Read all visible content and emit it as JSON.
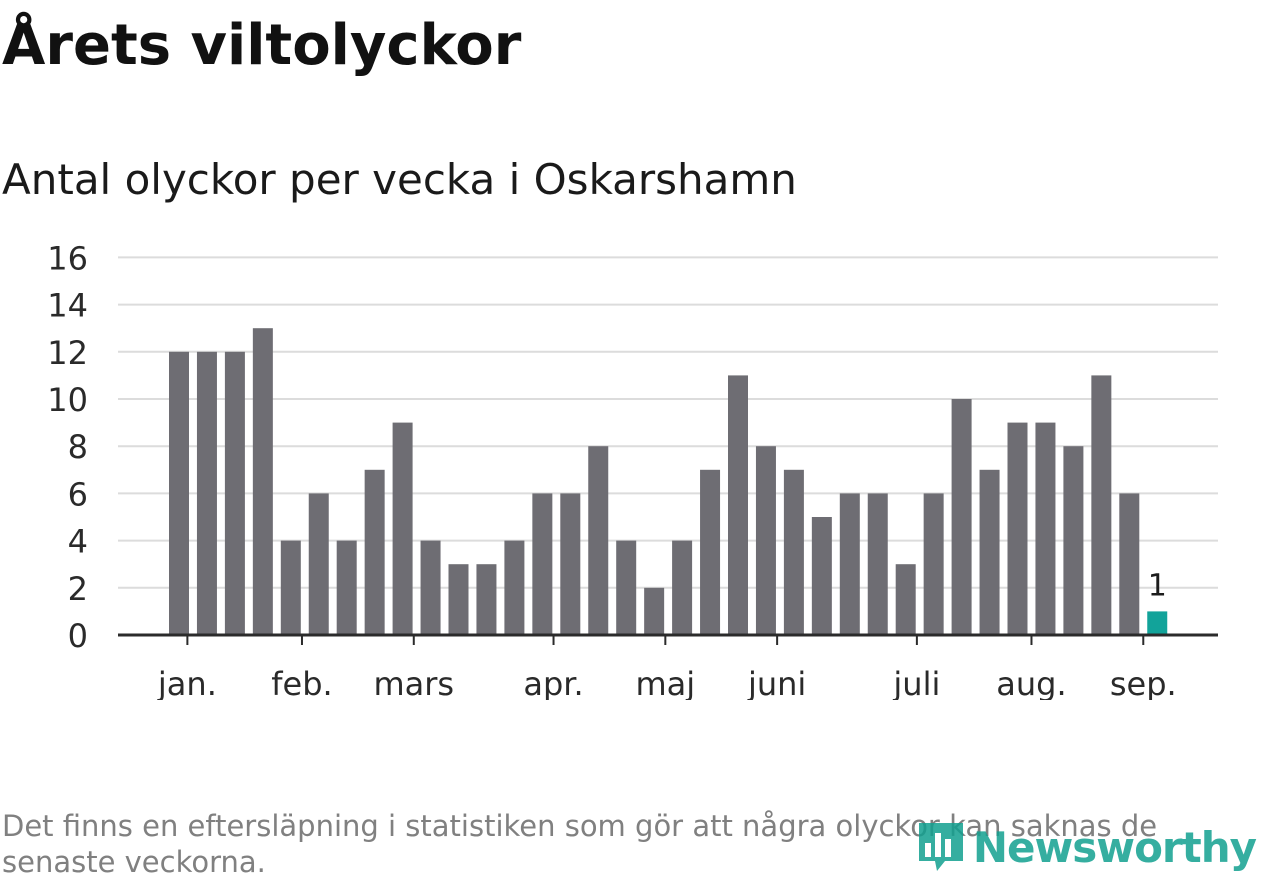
{
  "title": "Årets viltolyckor",
  "subtitle": "Antal olyckor per vecka i Oskarshamn",
  "footnote": "Det finns en eftersläpning i statistiken som gör att några olyckor kan saknas de senaste veckorna.",
  "logo": {
    "text": "Newsworthy",
    "icon": "bar-chart-bubble-icon",
    "color": "#12a090"
  },
  "colors": {
    "bar": "#6e6d73",
    "highlight": "#12a39a",
    "grid": "#dcdcdc",
    "axis": "#2b2b2b"
  },
  "chart_data": {
    "type": "bar",
    "title": "Antal olyckor per vecka i Oskarshamn",
    "xlabel": "",
    "ylabel": "",
    "ylim": [
      0,
      16
    ],
    "yticks": [
      0,
      2,
      4,
      6,
      8,
      10,
      12,
      14,
      16
    ],
    "grid": true,
    "values": [
      12,
      12,
      12,
      13,
      4,
      6,
      4,
      7,
      9,
      4,
      3,
      3,
      4,
      6,
      6,
      8,
      4,
      2,
      4,
      7,
      11,
      8,
      7,
      5,
      6,
      6,
      3,
      6,
      10,
      7,
      9,
      9,
      8,
      11,
      6,
      1
    ],
    "month_ticks": [
      {
        "label": "jan.",
        "week": 0.3
      },
      {
        "label": "feb.",
        "week": 4.4
      },
      {
        "label": "mars",
        "week": 8.4
      },
      {
        "label": "apr.",
        "week": 13.4
      },
      {
        "label": "maj",
        "week": 17.4
      },
      {
        "label": "juni",
        "week": 21.4
      },
      {
        "label": "juli",
        "week": 26.4
      },
      {
        "label": "aug.",
        "week": 30.5
      },
      {
        "label": "sep.",
        "week": 34.5
      }
    ],
    "highlight_index": 35,
    "data_labels": [
      {
        "index": 35,
        "text": "1"
      }
    ]
  }
}
